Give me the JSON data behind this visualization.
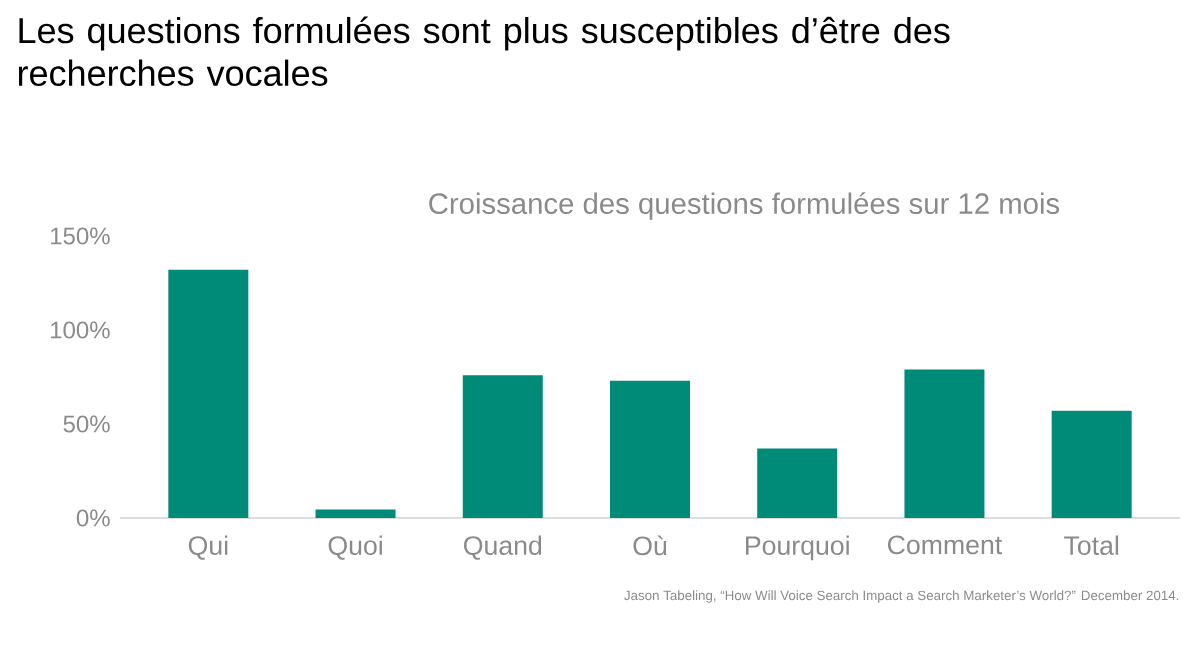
{
  "chart_data": {
    "type": "bar",
    "title": "Les questions formulées sont plus susceptibles d’être des recherches vocales",
    "subtitle": "Croissance des questions formulées sur 12 mois",
    "categories": [
      "Qui",
      "Quoi",
      "Quand",
      "Où",
      "Pourquoi",
      "Comment",
      "Total"
    ],
    "values": [
      132,
      4.5,
      76,
      73,
      37,
      79,
      57
    ],
    "color": "#008a78",
    "ylim": [
      0,
      150
    ],
    "yticks": [
      {
        "value": 0,
        "label": "0%"
      },
      {
        "value": 50,
        "label": "50%"
      },
      {
        "value": 100,
        "label": "100%"
      },
      {
        "value": 150,
        "label": "150%"
      }
    ],
    "grid": false,
    "annotations": [
      "Jason Tabeling, “How Will Voice Search Impact a Search Marketer’s World?” December 2014."
    ]
  }
}
